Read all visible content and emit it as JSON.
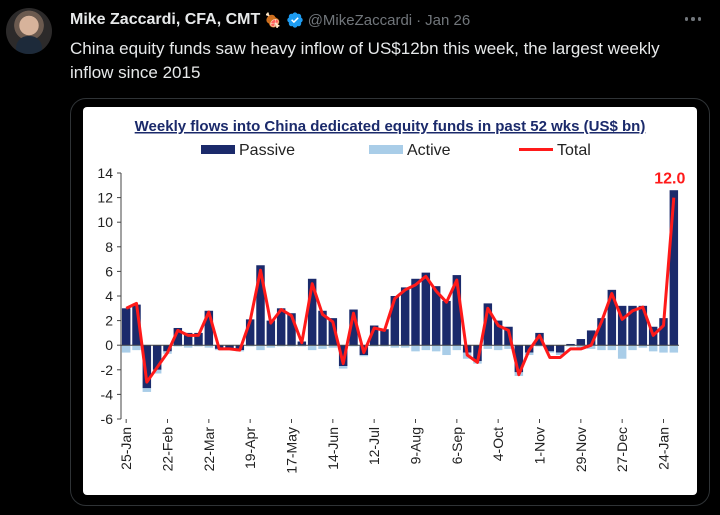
{
  "tweet": {
    "author_name": "Mike Zaccardi, CFA, CMT",
    "emoji": "🍖",
    "handle": "@MikeZaccardi",
    "separator": "·",
    "date": "Jan 26",
    "text": "China equity funds saw heavy inflow of US$12bn this week, the largest weekly inflow since 2015"
  },
  "colors": {
    "passive": "#1b2a6b",
    "active": "#a9cde8",
    "total": "#ff1a1a",
    "title": "#1b2a6b",
    "verified": "#1d9bf0"
  },
  "chart_data": {
    "type": "bar",
    "title": "Weekly flows into China dedicated equity funds in past 52 wks (US$ bn)",
    "legend": [
      "Passive",
      "Active",
      "Total"
    ],
    "legend_position": "top",
    "ylim": [
      -6,
      14
    ],
    "yticks": [
      -6,
      -4,
      -2,
      0,
      2,
      4,
      6,
      8,
      10,
      12,
      14
    ],
    "x_tick_labels": [
      "25-Jan",
      "22-Feb",
      "22-Mar",
      "19-Apr",
      "17-May",
      "14-Jun",
      "12-Jul",
      "9-Aug",
      "6-Sep",
      "4-Oct",
      "1-Nov",
      "29-Nov",
      "27-Dec",
      "24-Jan"
    ],
    "x_tick_every": 4,
    "annotation": "12.0",
    "series": [
      {
        "name": "Passive",
        "values": [
          3.0,
          3.3,
          -3.5,
          -2.0,
          -0.5,
          1.4,
          1.0,
          1.0,
          2.8,
          -0.3,
          -0.3,
          -0.4,
          2.1,
          6.5,
          2.0,
          3.0,
          2.6,
          0.3,
          5.4,
          2.8,
          2.2,
          -1.7,
          2.9,
          -0.8,
          1.6,
          1.3,
          4.0,
          4.7,
          5.4,
          5.9,
          4.8,
          3.6,
          5.7,
          -0.6,
          -1.3,
          3.4,
          2.0,
          1.5,
          -2.2,
          -0.6,
          1.0,
          -0.5,
          -0.6,
          0.1,
          0.5,
          1.2,
          2.2,
          4.5,
          3.2,
          3.2,
          3.2,
          1.5,
          2.2,
          12.6
        ]
      },
      {
        "name": "Active",
        "values": [
          -0.6,
          -0.4,
          -0.3,
          -0.3,
          -0.2,
          -0.1,
          -0.2,
          -0.1,
          -0.2,
          -0.1,
          0.0,
          -0.1,
          -0.1,
          -0.4,
          -0.2,
          -0.1,
          -0.1,
          -0.1,
          -0.4,
          -0.3,
          -0.2,
          -0.2,
          -0.1,
          -0.1,
          -0.1,
          -0.1,
          -0.2,
          -0.2,
          -0.5,
          -0.4,
          -0.5,
          -0.8,
          -0.4,
          -0.5,
          -0.2,
          -0.3,
          -0.4,
          -0.3,
          -0.3,
          -0.2,
          -0.1,
          -0.1,
          -0.2,
          -0.1,
          -0.2,
          -0.3,
          -0.4,
          -0.4,
          -1.1,
          -0.4,
          -0.2,
          -0.5,
          -0.6,
          -0.6
        ]
      },
      {
        "name": "Total",
        "values": [
          3.0,
          3.4,
          -3.0,
          -1.8,
          -0.6,
          1.2,
          0.8,
          0.8,
          2.7,
          -0.3,
          -0.3,
          -0.4,
          2.0,
          6.1,
          1.8,
          2.9,
          2.4,
          0.2,
          5.0,
          2.5,
          1.9,
          -1.5,
          2.6,
          -0.6,
          1.4,
          1.2,
          3.8,
          4.5,
          4.9,
          5.6,
          4.4,
          3.5,
          5.3,
          -0.8,
          -1.4,
          3.0,
          1.6,
          1.2,
          -2.4,
          -0.4,
          0.8,
          -1.0,
          -1.0,
          -0.3,
          -0.3,
          0.0,
          1.9,
          4.2,
          2.1,
          2.8,
          3.1,
          0.8,
          1.6,
          12.0
        ]
      }
    ]
  }
}
